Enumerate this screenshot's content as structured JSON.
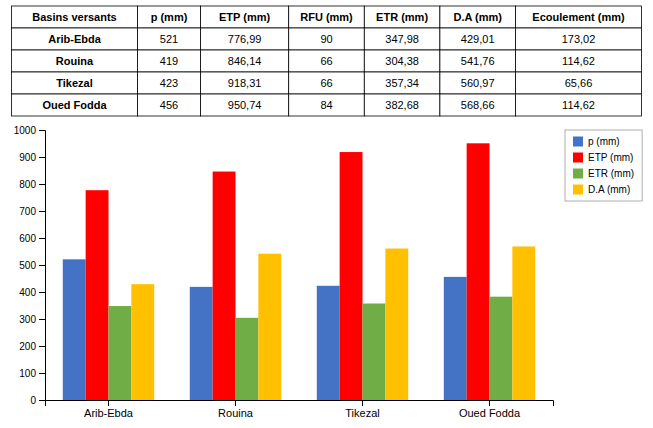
{
  "chart_data": {
    "type": "bar",
    "table": {
      "headers": [
        "Basins versants",
        "p (mm)",
        "ETP (mm)",
        "RFU (mm)",
        "ETR (mm)",
        "D.A (mm)",
        "Ecoulement (mm)"
      ],
      "rows": [
        [
          "Arib-Ebda",
          "521",
          "776,99",
          "90",
          "347,98",
          "429,01",
          "173,02"
        ],
        [
          "Rouina",
          "419",
          "846,14",
          "66",
          "304,38",
          "541,76",
          "114,62"
        ],
        [
          "Tikezal",
          "423",
          "918,31",
          "66",
          "357,34",
          "560,97",
          "65,66"
        ],
        [
          "Oued Fodda",
          "456",
          "950,74",
          "84",
          "382,68",
          "568,66",
          "114,62"
        ]
      ]
    },
    "categories": [
      "Arib-Ebda",
      "Rouina",
      "Tikezal",
      "Oued Fodda"
    ],
    "series": [
      {
        "name": "p (mm)",
        "color": "#4472C4",
        "values": [
          521,
          419,
          423,
          456
        ]
      },
      {
        "name": "ETP (mm)",
        "color": "#FF0000",
        "values": [
          776.99,
          846.14,
          918.31,
          950.74
        ]
      },
      {
        "name": "ETR (mm)",
        "color": "#70AD47",
        "values": [
          347.98,
          304.38,
          357.34,
          382.68
        ]
      },
      {
        "name": "D.A (mm)",
        "color": "#FFC000",
        "values": [
          429.01,
          541.76,
          560.97,
          568.66
        ]
      }
    ],
    "ylim": [
      0,
      1000
    ],
    "yticks": [
      0,
      100,
      200,
      300,
      400,
      500,
      600,
      700,
      800,
      900,
      1000
    ],
    "grid": false,
    "legend": "right"
  }
}
